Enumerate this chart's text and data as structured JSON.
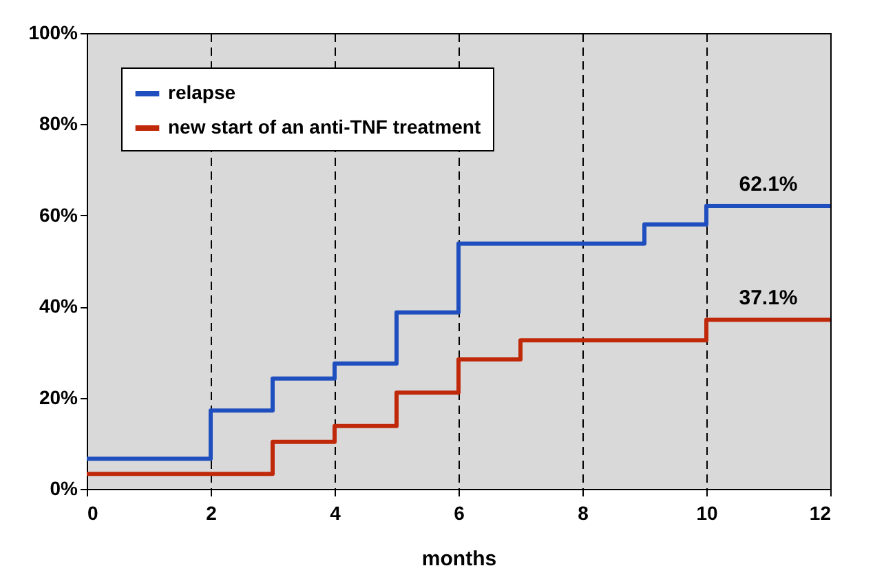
{
  "chart_data": {
    "type": "step",
    "xlabel": "months",
    "series": [
      {
        "name": "relapse",
        "color": "#1f4fbf",
        "x": [
          0,
          2,
          3,
          4,
          5,
          6,
          9,
          10,
          12
        ],
        "values": [
          6.6,
          17.2,
          24.2,
          27.5,
          38.7,
          53.8,
          58,
          62.1,
          62.1
        ]
      },
      {
        "name": "new start of an anti-TNF treatment",
        "color": "#c0280a",
        "x": [
          0,
          3,
          4,
          5,
          6,
          7,
          10,
          12
        ],
        "values": [
          3.3,
          10.3,
          13.8,
          21.1,
          28.4,
          32.6,
          37.1,
          37.1
        ]
      }
    ],
    "xlim": [
      0,
      12
    ],
    "xticks": [
      0,
      2,
      4,
      6,
      8,
      10,
      12
    ],
    "ylim": [
      0,
      100
    ],
    "yticks": [
      {
        "value": 0,
        "label": "0%"
      },
      {
        "value": 20,
        "label": "20%"
      },
      {
        "value": 40,
        "label": "40%"
      },
      {
        "value": 60,
        "label": "60%"
      },
      {
        "value": 80,
        "label": "80%"
      },
      {
        "value": 100,
        "label": "100%"
      }
    ],
    "annotations": [
      {
        "text": "62.1%",
        "x": 11,
        "y": 62.1
      },
      {
        "text": "37.1%",
        "x": 11,
        "y": 37.1
      }
    ],
    "grid": "x",
    "legend": "top left",
    "line_style": "solid"
  }
}
